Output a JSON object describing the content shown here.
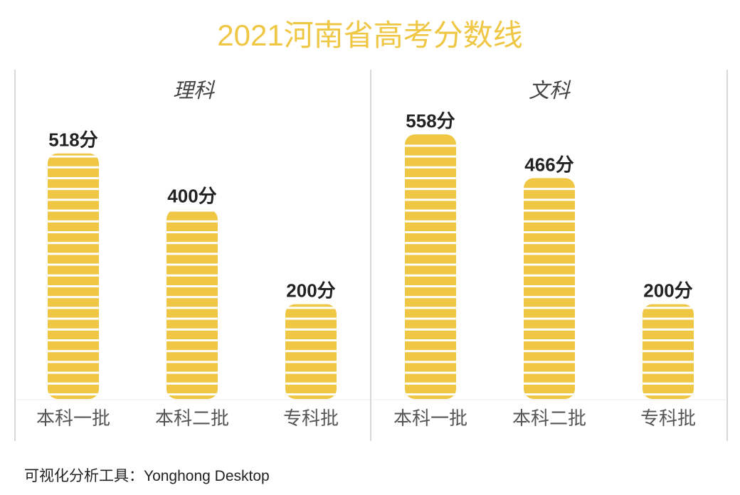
{
  "title": "2021河南省高考分数线",
  "footer": "可视化分析工具：Yonghong Desktop",
  "colors": {
    "title": "#efc745",
    "bar": "#efc745",
    "bar_stripe": "#ffffff",
    "value_label": "#222222",
    "axis_label": "#555555",
    "panel_title": "#444444",
    "divider": "#cccccc"
  },
  "chart_data": [
    {
      "type": "bar",
      "title": "理科",
      "categories": [
        "本科一批",
        "本科二批",
        "专科批"
      ],
      "values": [
        518,
        400,
        200
      ],
      "value_labels": [
        "518分",
        "400分",
        "200分"
      ],
      "ylim": [
        0,
        600
      ],
      "grid": false
    },
    {
      "type": "bar",
      "title": "文科",
      "categories": [
        "本科一批",
        "本科二批",
        "专科批"
      ],
      "values": [
        558,
        466,
        200
      ],
      "value_labels": [
        "558分",
        "466分",
        "200分"
      ],
      "ylim": [
        0,
        600
      ],
      "grid": false
    }
  ]
}
